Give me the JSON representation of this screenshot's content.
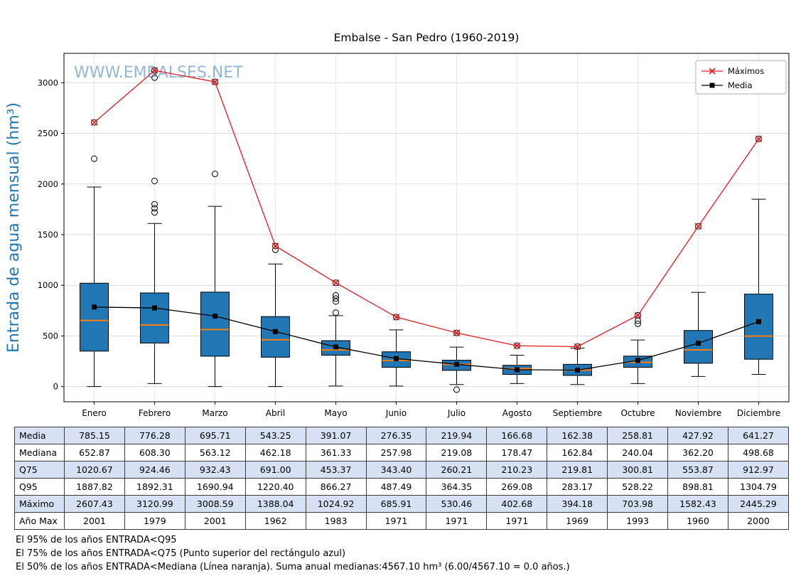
{
  "chart": {
    "title": "Embalse - San Pedro (1960-2019)",
    "watermark": "WWW.EMBALSES.NET",
    "ylabel": "Entrada de agua mensual (hm³)"
  },
  "chart_data": {
    "type": "boxplot",
    "title": "Embalse - San Pedro (1960-2019)",
    "watermark": "WWW.EMBALSES.NET",
    "ylabel": "Entrada de agua mensual (hm³)",
    "xlabel": "",
    "categories": [
      "Enero",
      "Febrero",
      "Marzo",
      "Abril",
      "Mayo",
      "Junio",
      "Julio",
      "Agosto",
      "Septiembre",
      "Octubre",
      "Noviembre",
      "Diciembre"
    ],
    "ylim": [
      -150,
      3290
    ],
    "yticks": [
      0,
      500,
      1000,
      1500,
      2000,
      2500,
      3000
    ],
    "grid": true,
    "legend_position": "upper right",
    "series": [
      {
        "name": "Máximos",
        "marker": "x",
        "values": [
          2607.43,
          3120.99,
          3008.59,
          1388.04,
          1024.92,
          685.91,
          530.46,
          402.68,
          394.18,
          703.98,
          1582.43,
          2445.29
        ]
      },
      {
        "name": "Media",
        "marker": "square",
        "values": [
          785.15,
          776.28,
          695.71,
          543.25,
          391.07,
          276.35,
          219.94,
          166.68,
          162.38,
          258.81,
          427.92,
          641.27
        ]
      }
    ],
    "boxplot": {
      "q1": [
        350,
        430,
        300,
        290,
        310,
        190,
        160,
        120,
        110,
        190,
        230,
        270
      ],
      "median": [
        652.87,
        608.3,
        563.12,
        462.18,
        361.33,
        257.98,
        219.08,
        178.47,
        162.84,
        240.04,
        362.2,
        498.68
      ],
      "q3": [
        1020.67,
        924.46,
        932.43,
        691.0,
        453.37,
        343.4,
        260.21,
        210.23,
        219.81,
        300.81,
        553.87,
        912.97
      ],
      "whisker_low": [
        0,
        30,
        0,
        0,
        5,
        5,
        20,
        30,
        20,
        30,
        100,
        120
      ],
      "whisker_high": [
        1970,
        1610,
        1780,
        1210,
        700,
        560,
        390,
        310,
        380,
        460,
        930,
        1850
      ],
      "outliers": [
        [
          2250
        ],
        [
          3050,
          2030,
          1800,
          1760,
          1720
        ],
        [
          2100
        ],
        [
          1350
        ],
        [
          900,
          870,
          840,
          730
        ],
        [],
        [
          -30
        ],
        [],
        [],
        [
          650,
          620
        ],
        [],
        []
      ]
    },
    "colors": {
      "box_fill": "#2077b4",
      "box_edge": "#000000",
      "median_line": "#ff7f0e",
      "max_line": "#e41a1c",
      "media_line": "#000000",
      "axis_label": "#1f77b4",
      "watermark": "#85afcf",
      "grid": "#d9d9d9",
      "table_alt_row": "#d6e2f3"
    }
  },
  "table": {
    "row_labels": [
      "Media",
      "Mediana",
      "Q75",
      "Q95",
      "Máximo",
      "Año Max"
    ],
    "columns": [
      "Enero",
      "Febrero",
      "Marzo",
      "Abril",
      "Mayo",
      "Junio",
      "Julio",
      "Agosto",
      "Septiembre",
      "Octubre",
      "Noviembre",
      "Diciembre"
    ],
    "rows": [
      [
        "785.15",
        "776.28",
        "695.71",
        "543.25",
        "391.07",
        "276.35",
        "219.94",
        "166.68",
        "162.38",
        "258.81",
        "427.92",
        "641.27"
      ],
      [
        "652.87",
        "608.30",
        "563.12",
        "462.18",
        "361.33",
        "257.98",
        "219.08",
        "178.47",
        "162.84",
        "240.04",
        "362.20",
        "498.68"
      ],
      [
        "1020.67",
        "924.46",
        "932.43",
        "691.00",
        "453.37",
        "343.40",
        "260.21",
        "210.23",
        "219.81",
        "300.81",
        "553.87",
        "912.97"
      ],
      [
        "1887.82",
        "1892.31",
        "1690.94",
        "1220.40",
        "866.27",
        "487.49",
        "364.35",
        "269.08",
        "283.17",
        "528.22",
        "898.81",
        "1304.79"
      ],
      [
        "2607.43",
        "3120.99",
        "3008.59",
        "1388.04",
        "1024.92",
        "685.91",
        "530.46",
        "402.68",
        "394.18",
        "703.98",
        "1582.43",
        "2445.29"
      ],
      [
        "2001",
        "1979",
        "2001",
        "1962",
        "1983",
        "1971",
        "1971",
        "1971",
        "1969",
        "1993",
        "1960",
        "2000"
      ]
    ]
  },
  "footnotes": [
    "El 95% de los años ENTRADA<Q95",
    "El 75% de los años ENTRADA<Q75 (Punto superior del rectángulo azul)",
    "El 50% de los años ENTRADA<Mediana (Línea naranja). Suma anual medianas:4567.10 hm³ (6.00/4567.10 = 0.0 años.)"
  ]
}
